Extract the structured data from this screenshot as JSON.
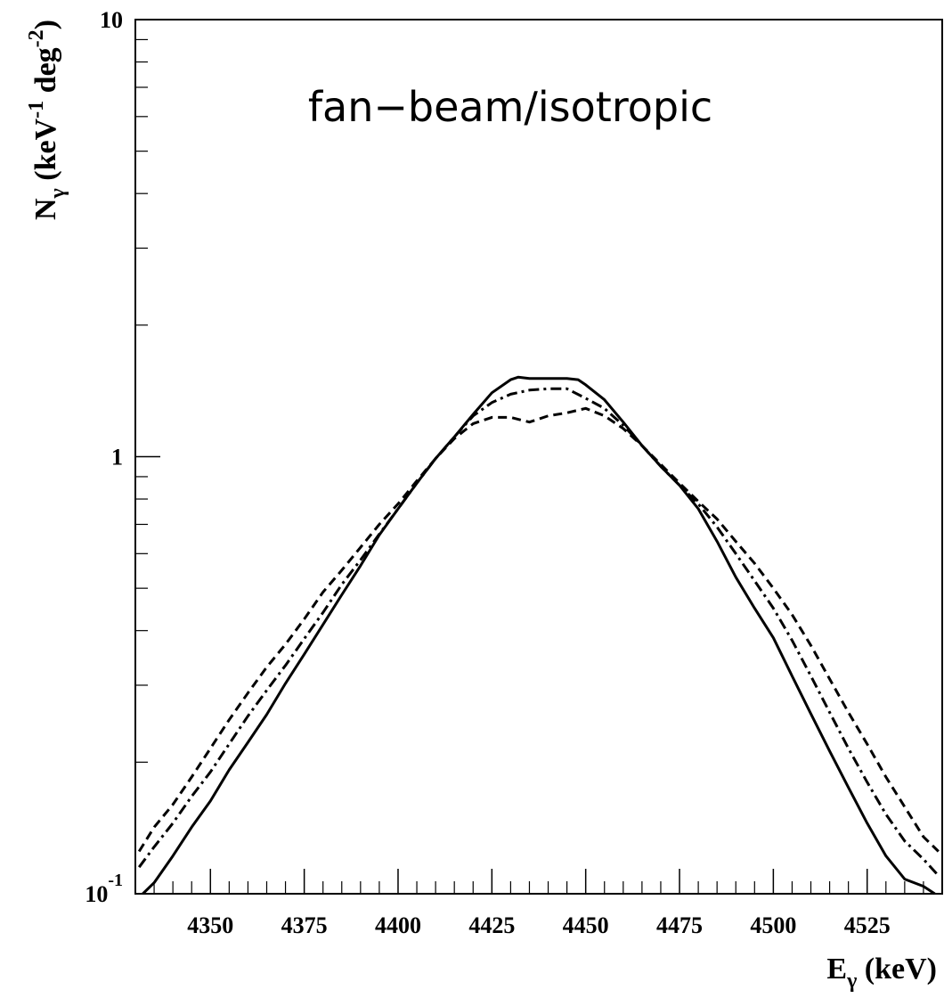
{
  "chart_data": {
    "type": "line",
    "title": "",
    "annotation": "fan−beam/isotropic",
    "xlabel": {
      "main": "E",
      "sub": "γ",
      "rest": " (keV)"
    },
    "ylabel": {
      "main": "N",
      "sub": "γ",
      "a": " (keV",
      "sup1": "-1",
      "b": " deg",
      "sup2": "-2",
      "c": ")"
    },
    "xlim": [
      4330,
      4545
    ],
    "ylim": [
      0.1,
      10
    ],
    "yscale": "log",
    "grid": false,
    "x_ticks": [
      4350,
      4375,
      4400,
      4425,
      4450,
      4475,
      4500,
      4525
    ],
    "x_tick_labels": [
      "4350",
      "4375",
      "4400",
      "4425",
      "4450",
      "4475",
      "4500",
      "4525"
    ],
    "y_tick_labels": [
      {
        "value": 10,
        "base": "10",
        "exp": ""
      },
      {
        "value": 1,
        "base": "1",
        "exp": ""
      },
      {
        "value": 0.1,
        "base": "10",
        "exp": "-1"
      }
    ],
    "series": [
      {
        "style": "solid",
        "x": [
          4332,
          4335,
          4340,
          4345,
          4350,
          4355,
          4360,
          4365,
          4370,
          4375,
          4380,
          4385,
          4390,
          4395,
          4400,
          4405,
          4410,
          4415,
          4420,
          4425,
          4430,
          4432,
          4435,
          4440,
          4445,
          4448,
          4450,
          4455,
          4460,
          4465,
          4470,
          4475,
          4480,
          4485,
          4490,
          4495,
          4500,
          4505,
          4510,
          4515,
          4520,
          4525,
          4530,
          4535,
          4540,
          4543
        ],
        "y": [
          0.1,
          0.106,
          0.122,
          0.142,
          0.163,
          0.192,
          0.222,
          0.257,
          0.303,
          0.353,
          0.413,
          0.483,
          0.563,
          0.662,
          0.76,
          0.87,
          0.99,
          1.11,
          1.25,
          1.4,
          1.5,
          1.52,
          1.51,
          1.51,
          1.51,
          1.5,
          1.46,
          1.35,
          1.2,
          1.06,
          0.95,
          0.86,
          0.76,
          0.64,
          0.53,
          0.45,
          0.385,
          0.315,
          0.258,
          0.212,
          0.175,
          0.145,
          0.122,
          0.108,
          0.104,
          0.1
        ]
      },
      {
        "style": "dashdot",
        "x": [
          4331,
          4335,
          4340,
          4345,
          4350,
          4355,
          4360,
          4365,
          4370,
          4375,
          4380,
          4385,
          4390,
          4395,
          4400,
          4405,
          4410,
          4415,
          4420,
          4425,
          4430,
          4435,
          4440,
          4445,
          4450,
          4455,
          4460,
          4465,
          4470,
          4475,
          4480,
          4485,
          4490,
          4495,
          4500,
          4505,
          4510,
          4515,
          4520,
          4525,
          4530,
          4535,
          4540,
          4544
        ],
        "y": [
          0.115,
          0.128,
          0.145,
          0.167,
          0.19,
          0.22,
          0.255,
          0.292,
          0.333,
          0.383,
          0.44,
          0.51,
          0.58,
          0.665,
          0.76,
          0.87,
          0.99,
          1.11,
          1.24,
          1.33,
          1.39,
          1.42,
          1.43,
          1.43,
          1.36,
          1.29,
          1.18,
          1.06,
          0.95,
          0.86,
          0.78,
          0.69,
          0.6,
          0.52,
          0.45,
          0.38,
          0.315,
          0.26,
          0.215,
          0.18,
          0.152,
          0.132,
          0.12,
          0.11
        ]
      },
      {
        "style": "dashed",
        "x": [
          4331,
          4335,
          4340,
          4345,
          4350,
          4355,
          4360,
          4365,
          4370,
          4375,
          4380,
          4385,
          4390,
          4395,
          4400,
          4405,
          4410,
          4415,
          4420,
          4425,
          4430,
          4435,
          4440,
          4445,
          4450,
          4455,
          4460,
          4465,
          4470,
          4475,
          4480,
          4485,
          4490,
          4495,
          4500,
          4505,
          4510,
          4515,
          4520,
          4525,
          4530,
          4535,
          4540,
          4544
        ],
        "y": [
          0.125,
          0.142,
          0.16,
          0.185,
          0.215,
          0.25,
          0.288,
          0.33,
          0.372,
          0.425,
          0.49,
          0.55,
          0.62,
          0.7,
          0.78,
          0.88,
          0.99,
          1.1,
          1.19,
          1.23,
          1.23,
          1.2,
          1.24,
          1.26,
          1.29,
          1.24,
          1.16,
          1.06,
          0.96,
          0.87,
          0.79,
          0.72,
          0.64,
          0.57,
          0.5,
          0.435,
          0.37,
          0.31,
          0.26,
          0.22,
          0.185,
          0.158,
          0.135,
          0.125
        ]
      }
    ]
  }
}
